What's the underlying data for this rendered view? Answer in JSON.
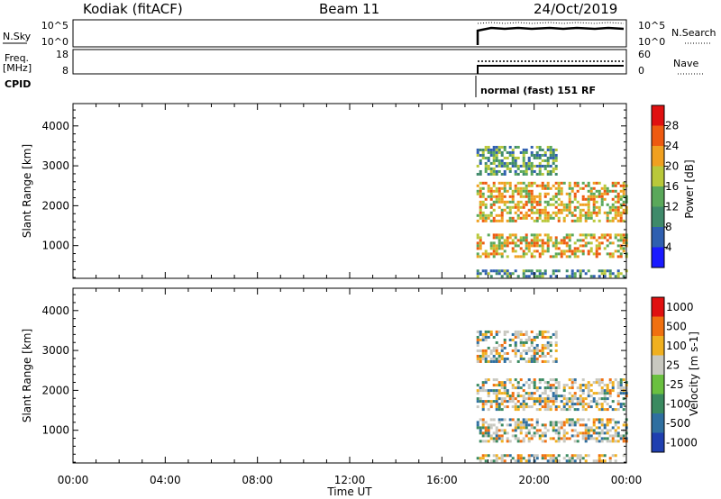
{
  "header": {
    "station": "Kodiak (fitACF)",
    "beam": "Beam 11",
    "date": "24/Oct/2019"
  },
  "top_panel": {
    "left_label": "N.Sky",
    "left_ticks": [
      "10^5",
      "10^0"
    ],
    "right_label": "N.Search",
    "right_ticks": [
      "10^5",
      "10^0"
    ]
  },
  "freq_panel": {
    "left_label_line1": "Freq.",
    "left_label_line2": "[MHz]",
    "left_ticks": [
      "18",
      "8"
    ],
    "right_label": "Nave",
    "right_ticks": [
      "60",
      "0"
    ]
  },
  "cpid": {
    "label": "CPID",
    "mode": "normal (fast) 151 RF"
  },
  "chart_data": [
    {
      "type": "heatmap",
      "name": "power",
      "ylabel": "Slant Range [km]",
      "yticks": [
        1000,
        2000,
        3000,
        4000
      ],
      "ylim": [
        180,
        4560
      ],
      "xlim_hours": [
        0,
        24
      ],
      "data_start_hour": 17.4,
      "colorbar": {
        "label": "Power [dB]",
        "ticks": [
          4,
          8,
          12,
          16,
          20,
          24,
          28
        ],
        "range": [
          0,
          32
        ],
        "colors": [
          "#1a1aff",
          "#2f5fb0",
          "#3f8a6a",
          "#5aa85a",
          "#b9c83a",
          "#f0a020",
          "#ee5a10",
          "#e01010"
        ]
      },
      "echo_regions_km": [
        {
          "start_hour": 17.5,
          "end_hour": 24,
          "range_km": [
            700,
            1300
          ]
        },
        {
          "start_hour": 17.5,
          "end_hour": 24,
          "range_km": [
            1600,
            2600
          ]
        },
        {
          "start_hour": 17.5,
          "end_hour": 21.0,
          "range_km": [
            2800,
            3500
          ]
        },
        {
          "start_hour": 17.5,
          "end_hour": 24,
          "range_km": [
            200,
            400
          ]
        }
      ]
    },
    {
      "type": "heatmap",
      "name": "velocity",
      "ylabel": "Slant Range [km]",
      "yticks": [
        1000,
        2000,
        3000,
        4000
      ],
      "ylim": [
        180,
        4560
      ],
      "xlim_hours": [
        0,
        24
      ],
      "data_start_hour": 17.4,
      "colorbar": {
        "label": "Velocity [m s-1]",
        "ticks": [
          "1000",
          "500",
          "100",
          "25",
          "-25",
          "-100",
          "-500",
          "-1000"
        ],
        "colors": [
          "#1f3fb0",
          "#2f6fa0",
          "#3a8a60",
          "#6ac040",
          "#c8c8c0",
          "#f0b020",
          "#f07010",
          "#e01010"
        ]
      },
      "echo_regions_km": [
        {
          "start_hour": 17.5,
          "end_hour": 24,
          "range_km": [
            700,
            1300
          ]
        },
        {
          "start_hour": 17.5,
          "end_hour": 24,
          "range_km": [
            1500,
            2300
          ]
        },
        {
          "start_hour": 17.5,
          "end_hour": 21.0,
          "range_km": [
            2700,
            3500
          ]
        },
        {
          "start_hour": 17.5,
          "end_hour": 24,
          "range_km": [
            200,
            400
          ]
        }
      ]
    }
  ],
  "x_axis": {
    "tick_labels": [
      "00:00",
      "04:00",
      "08:00",
      "12:00",
      "16:00",
      "20:00",
      "00:00"
    ],
    "label": "Time UT"
  }
}
